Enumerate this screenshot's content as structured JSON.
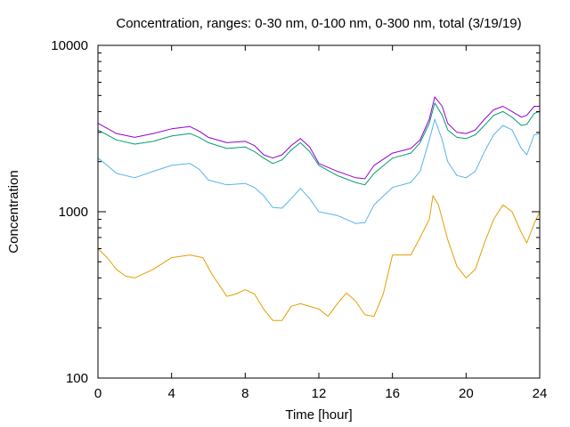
{
  "chart_data": {
    "type": "line",
    "title": "Concentration, ranges: 0-30 nm, 0-100 nm, 0-300 nm, total (3/19/19)",
    "xlabel": "Time [hour]",
    "ylabel": "Concentration",
    "xlim": [
      0,
      24
    ],
    "ylim": [
      100,
      10000
    ],
    "yscale": "log",
    "xticks": [
      "0",
      "4",
      "8",
      "12",
      "16",
      "20",
      "24"
    ],
    "yticks": [
      "100",
      "1000",
      "10000"
    ],
    "grid": false,
    "legend": "none",
    "series": [
      {
        "color": "#e69f00",
        "x": [
          0,
          0.5,
          1,
          1.5,
          2,
          3,
          4,
          5,
          5.7,
          6.2,
          7,
          7.5,
          8,
          8.5,
          9,
          9.5,
          10,
          10.5,
          11,
          12,
          12.5,
          13,
          13.5,
          14,
          14.5,
          15,
          15.5,
          16,
          17,
          17.5,
          18,
          18.2,
          18.5,
          19,
          19.5,
          20,
          20.5,
          21,
          21.5,
          22,
          22.5,
          23,
          23.3,
          23.7,
          24
        ],
        "y": [
          600,
          530,
          450,
          410,
          400,
          450,
          530,
          550,
          530,
          420,
          310,
          320,
          340,
          320,
          260,
          222,
          222,
          270,
          280,
          260,
          235,
          280,
          325,
          290,
          240,
          235,
          320,
          550,
          550,
          700,
          900,
          1250,
          1100,
          680,
          470,
          400,
          450,
          650,
          900,
          1100,
          1000,
          750,
          650,
          850,
          1000
        ]
      },
      {
        "color": "#56b4e9",
        "x": [
          0,
          0.5,
          1,
          2,
          3,
          4,
          5,
          5.5,
          6,
          7,
          8,
          8.5,
          9,
          9.5,
          10,
          10.5,
          11,
          11.5,
          12,
          13,
          14,
          14.5,
          15,
          16,
          17,
          17.5,
          18,
          18.3,
          18.7,
          19,
          19.5,
          20,
          20.5,
          21,
          21.5,
          22,
          22.5,
          23,
          23.3,
          23.7,
          24
        ],
        "y": [
          2100,
          1900,
          1700,
          1600,
          1750,
          1900,
          1950,
          1800,
          1550,
          1450,
          1480,
          1400,
          1250,
          1060,
          1050,
          1200,
          1380,
          1200,
          1000,
          950,
          850,
          860,
          1100,
          1400,
          1500,
          1750,
          2700,
          3600,
          2700,
          2000,
          1650,
          1600,
          1750,
          2300,
          2900,
          3300,
          3100,
          2400,
          2200,
          2900,
          2950
        ]
      },
      {
        "color": "#009e73",
        "x": [
          0,
          1,
          2,
          3,
          4,
          5,
          5.5,
          6,
          7,
          8,
          8.5,
          9,
          9.5,
          10,
          10.5,
          11,
          11.5,
          12,
          13,
          14,
          14.5,
          15,
          16,
          17,
          17.5,
          18,
          18.3,
          18.7,
          19,
          19.5,
          20,
          20.5,
          21,
          21.5,
          22,
          22.5,
          23,
          23.3,
          23.7,
          24
        ],
        "y": [
          3100,
          2700,
          2550,
          2650,
          2850,
          2950,
          2800,
          2600,
          2400,
          2450,
          2300,
          2100,
          1950,
          2050,
          2350,
          2600,
          2300,
          1900,
          1650,
          1500,
          1450,
          1700,
          2100,
          2250,
          2600,
          3400,
          4500,
          3800,
          3100,
          2800,
          2750,
          2900,
          3300,
          3800,
          4000,
          3700,
          3300,
          3350,
          3900,
          4000
        ]
      },
      {
        "color": "#9400d3",
        "x": [
          0,
          1,
          2,
          3,
          4,
          5,
          5.5,
          6,
          7,
          8,
          8.5,
          9,
          9.5,
          10,
          10.5,
          11,
          11.5,
          12,
          13,
          14,
          14.5,
          15,
          16,
          17,
          17.5,
          18,
          18.3,
          18.7,
          19,
          19.5,
          20,
          20.5,
          21,
          21.5,
          22,
          22.5,
          23,
          23.3,
          23.7,
          24
        ],
        "y": [
          3400,
          2950,
          2800,
          2950,
          3150,
          3250,
          3050,
          2800,
          2600,
          2650,
          2500,
          2200,
          2100,
          2200,
          2500,
          2750,
          2450,
          1950,
          1750,
          1600,
          1580,
          1900,
          2250,
          2400,
          2700,
          3600,
          4900,
          4300,
          3400,
          3000,
          2950,
          3100,
          3600,
          4100,
          4300,
          4000,
          3700,
          3800,
          4300,
          4300
        ]
      }
    ]
  }
}
